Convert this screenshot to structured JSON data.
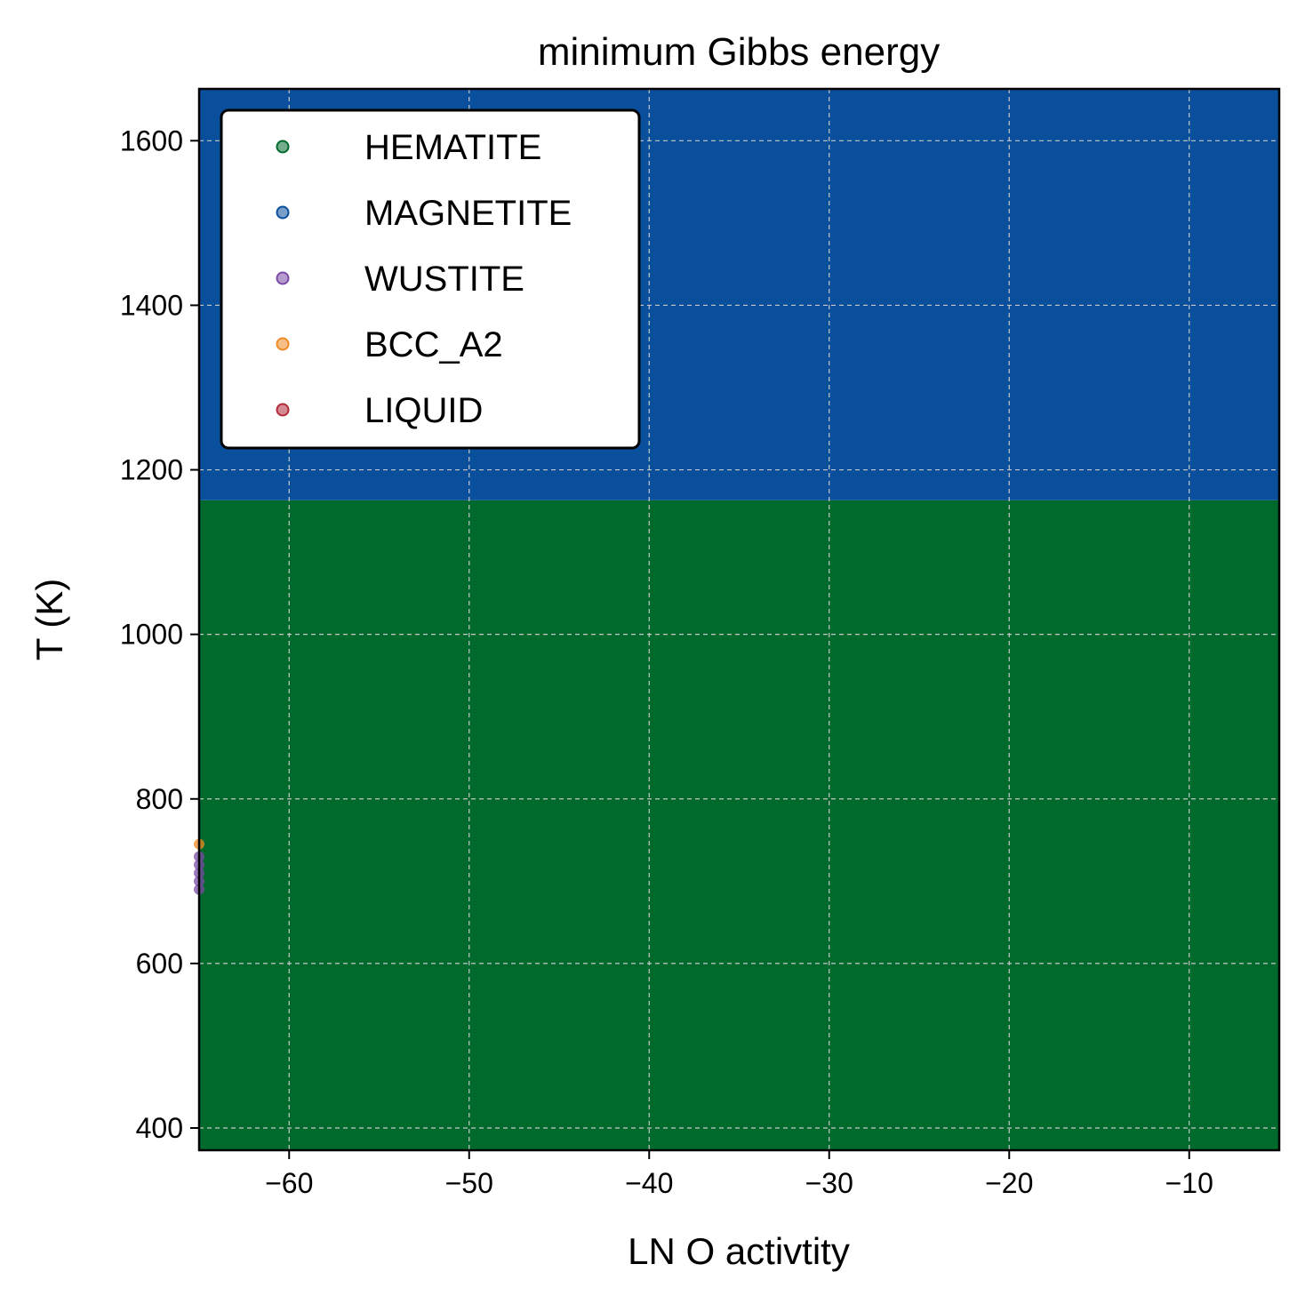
{
  "chart_data": {
    "type": "scatter",
    "title": "minimum Gibbs energy",
    "xlabel": "LN O activtity",
    "ylabel": "T (K)",
    "xlim": [
      -65,
      -5
    ],
    "ylim": [
      373,
      1663
    ],
    "xticks": [
      -60,
      -50,
      -40,
      -30,
      -20,
      -10
    ],
    "xtick_labels": [
      "−60",
      "−50",
      "−40",
      "−30",
      "−20",
      "−10"
    ],
    "yticks": [
      400,
      600,
      800,
      1000,
      1200,
      1400,
      1600
    ],
    "ytick_labels": [
      "400",
      "600",
      "800",
      "1000",
      "1200",
      "1400",
      "1600"
    ],
    "grid": true,
    "legend_position": "top-left",
    "series": [
      {
        "name": "HEMATITE",
        "color": "#006a2c",
        "region": {
          "x": [
            -65,
            -5
          ],
          "y": [
            373,
            1163
          ]
        }
      },
      {
        "name": "MAGNETITE",
        "color": "#0a4f9c",
        "region": {
          "x": [
            -65,
            -5
          ],
          "y": [
            1163,
            1663
          ]
        }
      },
      {
        "name": "WUSTITE",
        "color": "#7a4aa6",
        "points": [
          [
            -65,
            690
          ],
          [
            -65,
            700
          ],
          [
            -65,
            710
          ],
          [
            -65,
            720
          ],
          [
            -65,
            730
          ]
        ]
      },
      {
        "name": "BCC_A2",
        "color": "#f08a24",
        "points": [
          [
            -65,
            745
          ]
        ]
      },
      {
        "name": "LIQUID",
        "color": "#b22a3a",
        "points": []
      }
    ]
  }
}
